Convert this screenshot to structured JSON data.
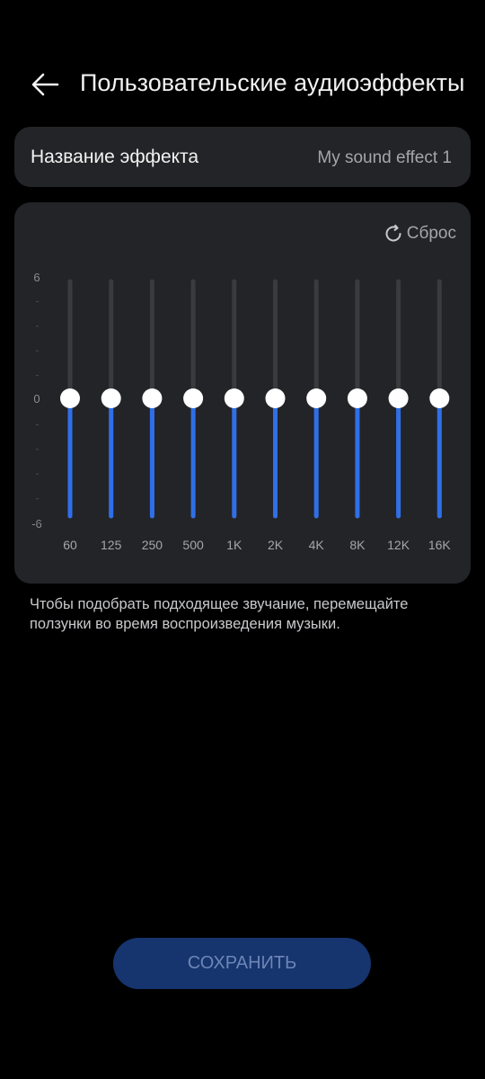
{
  "header": {
    "title": "Пользовательские аудиоэффекты",
    "back_icon": "arrow-left-icon"
  },
  "effect_name": {
    "label": "Название эффекта",
    "value": "My sound effect 1"
  },
  "equalizer": {
    "reset_label": "Сброс",
    "reset_icon": "refresh-icon",
    "scale": {
      "max": "6",
      "mid": "0",
      "min": "-6"
    },
    "bands": [
      {
        "label": "60",
        "gain": 0
      },
      {
        "label": "125",
        "gain": 0
      },
      {
        "label": "250",
        "gain": 0
      },
      {
        "label": "500",
        "gain": 0
      },
      {
        "label": "1K",
        "gain": 0
      },
      {
        "label": "2K",
        "gain": 0
      },
      {
        "label": "4K",
        "gain": 0
      },
      {
        "label": "8K",
        "gain": 0
      },
      {
        "label": "12K",
        "gain": 0
      },
      {
        "label": "16K",
        "gain": 0
      }
    ],
    "colors": {
      "active_track": "#2f6fe8",
      "inactive_track": "#3a3b3e",
      "thumb": "#ffffff"
    }
  },
  "help_text": "Чтобы подобрать подходящее звучание, перемещайте ползунки во время воспроизведения музыки.",
  "save_button": {
    "label": "СОХРАНИТЬ",
    "enabled": false
  },
  "colors": {
    "background": "#000000",
    "card": "#232427",
    "accent": "#2f6fe8"
  }
}
